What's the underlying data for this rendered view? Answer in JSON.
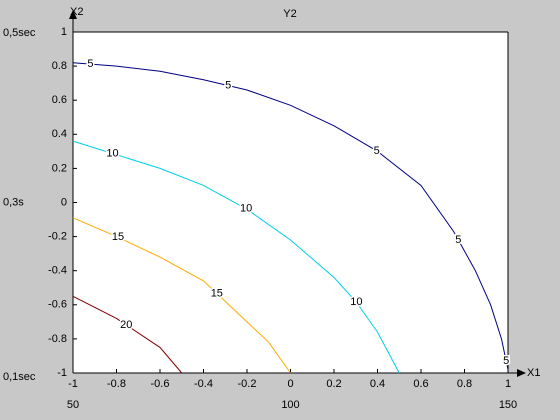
{
  "chart_data": {
    "type": "contour",
    "title": "Y2",
    "xlabel": "X1",
    "ylabel": "X2",
    "xlim": [
      -1,
      1
    ],
    "ylim": [
      -1,
      1
    ],
    "xticks": [
      -1,
      -0.8,
      -0.6,
      -0.4,
      -0.2,
      0,
      0.2,
      0.4,
      0.6,
      0.8,
      1
    ],
    "yticks": [
      -1,
      -0.8,
      -0.6,
      -0.4,
      -0.2,
      0,
      0.2,
      0.4,
      0.6,
      0.8,
      1
    ],
    "x2lim": [
      50,
      150
    ],
    "x2ticks": [
      50,
      100,
      150
    ],
    "y2lim": [
      0.1,
      0.5
    ],
    "y2ticks": [
      {
        "value": 0.5,
        "label": "0,5sec"
      },
      {
        "value": 0.3,
        "label": "0,3s"
      },
      {
        "value": 0.1,
        "label": "0,1sec"
      }
    ],
    "series": [
      {
        "level": 5,
        "color": "#000080",
        "x": [
          -1,
          -0.8,
          -0.6,
          -0.4,
          -0.2,
          0,
          0.2,
          0.4,
          0.6,
          0.75,
          0.85,
          0.92,
          0.97,
          1
        ],
        "y": [
          0.82,
          0.8,
          0.77,
          0.72,
          0.66,
          0.57,
          0.45,
          0.3,
          0.1,
          -0.17,
          -0.4,
          -0.6,
          -0.8,
          -0.98
        ]
      },
      {
        "level": 10,
        "color": "#00d0e8",
        "x": [
          -1,
          -0.8,
          -0.6,
          -0.4,
          -0.2,
          0,
          0.2,
          0.3,
          0.4,
          0.5
        ],
        "y": [
          0.36,
          0.28,
          0.2,
          0.1,
          -0.04,
          -0.22,
          -0.44,
          -0.58,
          -0.76,
          -1
        ]
      },
      {
        "level": 15,
        "color": "#ffaa00",
        "x": [
          -1,
          -0.8,
          -0.6,
          -0.4,
          -0.2,
          -0.1,
          0
        ],
        "y": [
          -0.09,
          -0.2,
          -0.32,
          -0.46,
          -0.7,
          -0.82,
          -1
        ]
      },
      {
        "level": 20,
        "color": "#800000",
        "x": [
          -1,
          -0.8,
          -0.6,
          -0.5
        ],
        "y": [
          -0.55,
          -0.68,
          -0.85,
          -1
        ]
      }
    ]
  }
}
